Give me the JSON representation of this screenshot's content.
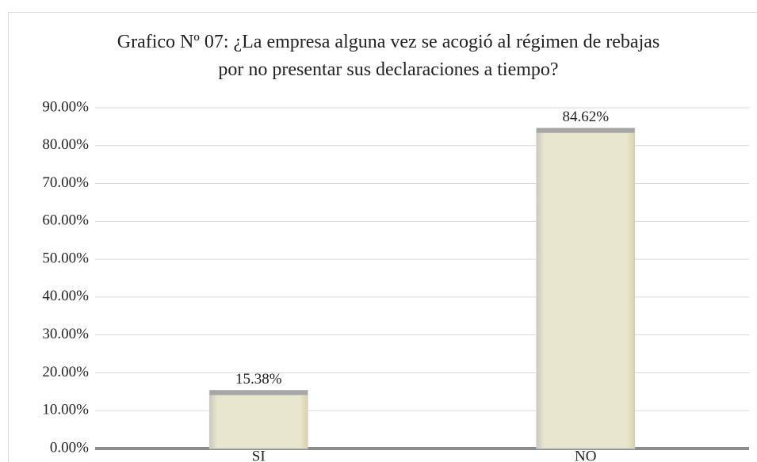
{
  "chart_data": {
    "type": "bar",
    "title": "Grafico Nº 07: ¿La empresa alguna vez se acogió al régimen de rebajas por no presentar sus declaraciones a tiempo?",
    "categories": [
      "SI",
      "NO"
    ],
    "values": [
      15.38,
      84.62
    ],
    "value_labels": [
      "15.38%",
      "84.62%"
    ],
    "color": "#e9e6cf",
    "ylim": [
      0,
      90
    ],
    "yticks": [
      {
        "value": 0,
        "label": "0.00%"
      },
      {
        "value": 10,
        "label": "10.00%"
      },
      {
        "value": 20,
        "label": "20.00%"
      },
      {
        "value": 30,
        "label": "30.00%"
      },
      {
        "value": 40,
        "label": "40.00%"
      },
      {
        "value": 50,
        "label": "50.00%"
      },
      {
        "value": 60,
        "label": "60.00%"
      },
      {
        "value": 70,
        "label": "70.00%"
      },
      {
        "value": 80,
        "label": "80.00%"
      },
      {
        "value": 90,
        "label": "90.00%"
      }
    ],
    "grid": true
  }
}
